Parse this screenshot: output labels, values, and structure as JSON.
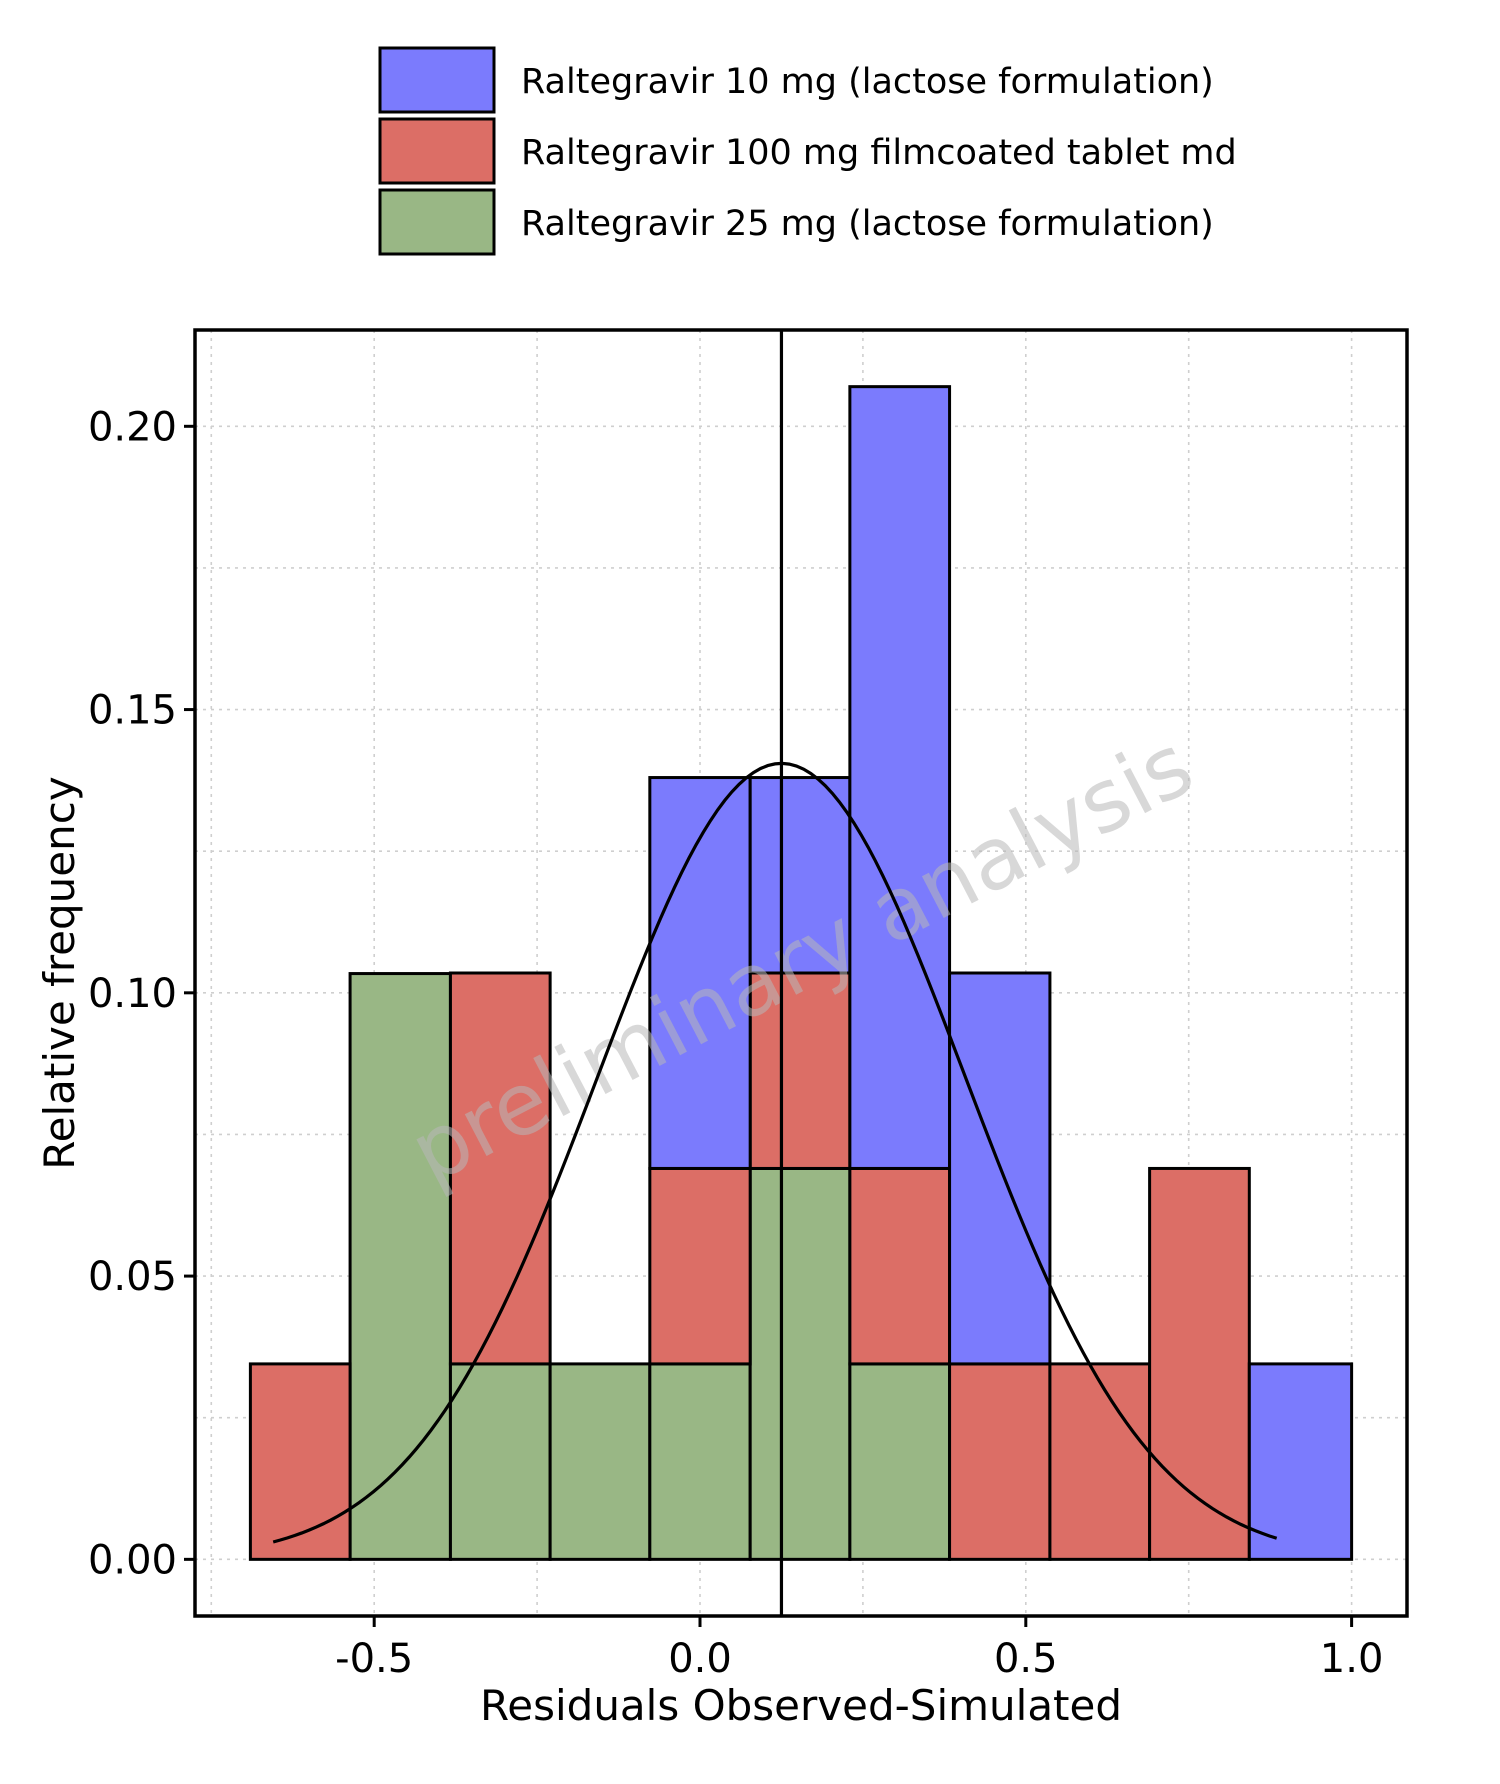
{
  "chart_data": {
    "type": "bar",
    "stacked": true,
    "bin_edges": [
      -0.69,
      -0.537,
      -0.383,
      -0.23,
      -0.077,
      0.077,
      0.23,
      0.383,
      0.537,
      0.69,
      0.843,
      1.0
    ],
    "series": [
      {
        "name": "Raltegravir 25 mg (lactose formulation)",
        "color": "#99b785",
        "values": [
          0,
          0.1034,
          0.0345,
          0.0345,
          0.0345,
          0.069,
          0.0345,
          0,
          0,
          0,
          0
        ]
      },
      {
        "name": "Raltegravir 100 mg filmcoated tablet md",
        "color": "#dc6e66",
        "values": [
          0.0345,
          0,
          0.069,
          0,
          0.0345,
          0.0345,
          0.0345,
          0.0345,
          0.0345,
          0.069,
          0
        ]
      },
      {
        "name": "Raltegravir 10 mg (lactose formulation)",
        "color": "#7b7bfd",
        "values": [
          0,
          0,
          0,
          0,
          0.069,
          0.0345,
          0.138,
          0.069,
          0,
          0,
          0.0345
        ]
      }
    ],
    "legend_order": [
      2,
      1,
      0
    ],
    "legend_position": "top",
    "reference_line_x": 0.125,
    "normal_curve": {
      "mean": 0.125,
      "sd": 0.282,
      "peak": 0.1405,
      "x_range": [
        -0.655,
        0.885
      ]
    },
    "xlabel": "Residuals Observed-Simulated",
    "ylabel": "Relative frequency",
    "xlim": [
      -0.775,
      1.085
    ],
    "ylim": [
      -0.01,
      0.217
    ],
    "xticks": [
      -0.5,
      0.0,
      0.5,
      1.0
    ],
    "xtick_labels": [
      "-0.5",
      "0.0",
      "0.5",
      "1.0"
    ],
    "yticks": [
      0.0,
      0.05,
      0.1,
      0.15,
      0.2
    ],
    "ytick_labels": [
      "0.00",
      "0.05",
      "0.10",
      "0.15",
      "0.20"
    ],
    "grid": true,
    "watermark": "preliminary analysis"
  }
}
